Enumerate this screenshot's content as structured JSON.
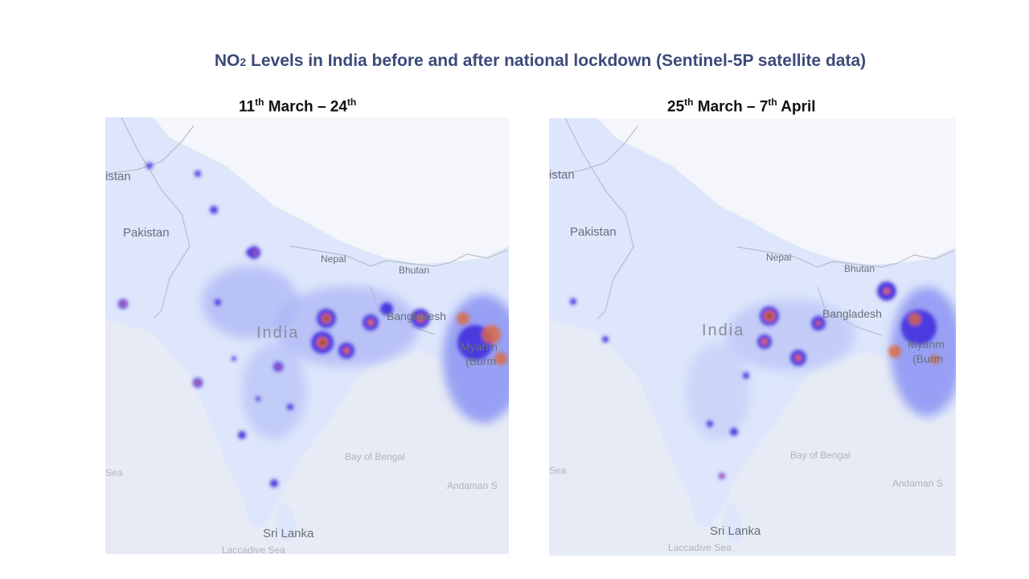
{
  "title": {
    "prefix": "NO",
    "subscript": "2",
    "rest": " Levels in India before and after national lockdown (Sentinel-5P satellite data)"
  },
  "maps": [
    {
      "period_parts": [
        "11",
        "th",
        " March – 24",
        "th",
        ""
      ],
      "labels": {
        "istan": "istan",
        "pakistan": "Pakistan",
        "nepal": "Nepal",
        "bhutan": "Bhutan",
        "india": "India",
        "bangladesh": "Bangladesh",
        "myanmar": "Myanm",
        "burma": "(Burm",
        "bay": "Bay of Bengal",
        "andaman": "Andaman S",
        "sea": "Sea",
        "srilanka": "Sri Lanka",
        "laccadive": "Laccadive Sea"
      }
    },
    {
      "period_parts": [
        "25",
        "th",
        " March – 7",
        "th",
        " April"
      ],
      "labels": {
        "istan": "istan",
        "pakistan": "Pakistan",
        "nepal": "Nepal",
        "bhutan": "Bhutan",
        "india": "India",
        "bangladesh": "Bangladesh",
        "myanmar": "Myanm",
        "burma": "(Burm",
        "bay": "Bay of Bengal",
        "andaman": "Andaman S",
        "sea": "Sea",
        "srilanka": "Sri Lanka",
        "laccadive": "Laccadive Sea"
      }
    }
  ],
  "colors": {
    "title": "#3b4a7a",
    "land_base": "#dde6fb",
    "sea": "#e6ebf5",
    "snow": "#f4f6fb",
    "no2_low": "#8f9cf3",
    "no2_mid": "#4a3ae0",
    "no2_high": "#e0683b",
    "no2_peak": "#3a3040"
  }
}
